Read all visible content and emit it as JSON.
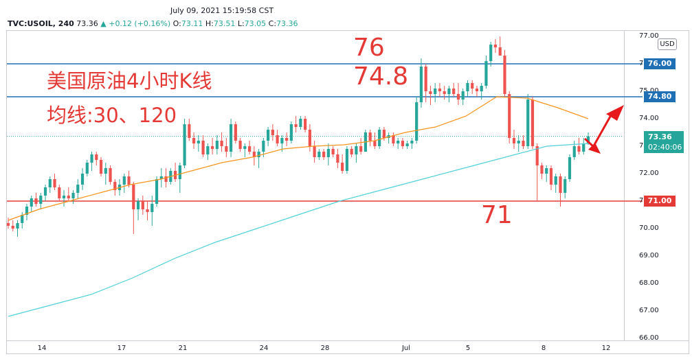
{
  "header": {
    "timestamp": "July 09, 2021 15:19:58 CST",
    "symbol": "TVC:USOIL, 240",
    "last": "73.36",
    "change": "▲ +0.12 (+0.16%)",
    "o_label": "O:",
    "o_value": "73.11",
    "h_label": "H:",
    "h_value": "73.51",
    "l_label": "L:",
    "l_value": "73.05",
    "c_label": "C:",
    "c_value": "73.36"
  },
  "annotations": {
    "title": "美国原油4小时K线",
    "ma": "均线:30、120",
    "level_76": "76",
    "level_748": "74.8",
    "level_71": "71"
  },
  "price_axis": {
    "currency_badge": "USD",
    "current_price": "73.36",
    "countdown": "02:40:06",
    "tag_76": "76.00",
    "tag_748": "74.80",
    "tag_71": "71.00"
  },
  "colors": {
    "up": "#26a69a",
    "down": "#ef5350",
    "ma30": "#f7931a",
    "ma120": "#4fd1d9",
    "blue_line": "#1f6fb5",
    "red_line": "#e53935",
    "arrow": "#e8191c"
  },
  "chart_data": {
    "type": "candlestick",
    "ylim": [
      66,
      77
    ],
    "yticks": [
      "77.00",
      "76.00",
      "75.00",
      "74.00",
      "73.00",
      "72.00",
      "71.00",
      "70.00",
      "69.00",
      "68.00",
      "67.00",
      "66.00"
    ],
    "xticks": [
      "14",
      "17",
      "21",
      "24",
      "28",
      "Jul",
      "5",
      "8",
      "12"
    ],
    "horizontal_lines": [
      {
        "value": 76.0,
        "color": "blue"
      },
      {
        "value": 74.8,
        "color": "blue"
      },
      {
        "value": 71.0,
        "color": "red"
      }
    ],
    "candles_ohlc": [
      [
        70.2,
        70.4,
        70.0,
        70.1
      ],
      [
        70.1,
        70.3,
        69.9,
        70.0
      ],
      [
        70.0,
        70.3,
        69.7,
        70.2
      ],
      [
        70.2,
        70.6,
        70.0,
        70.5
      ],
      [
        70.5,
        70.9,
        70.3,
        70.8
      ],
      [
        70.8,
        71.2,
        70.6,
        71.1
      ],
      [
        71.1,
        71.3,
        70.8,
        70.9
      ],
      [
        70.9,
        71.3,
        70.7,
        71.2
      ],
      [
        71.2,
        71.6,
        71.0,
        71.5
      ],
      [
        71.5,
        71.9,
        71.3,
        71.8
      ],
      [
        71.8,
        72.0,
        71.4,
        71.5
      ],
      [
        71.5,
        71.6,
        71.0,
        71.1
      ],
      [
        71.1,
        71.4,
        70.8,
        71.2
      ],
      [
        71.2,
        71.5,
        71.0,
        71.1
      ],
      [
        71.1,
        71.4,
        70.9,
        71.3
      ],
      [
        71.3,
        71.8,
        71.1,
        71.6
      ],
      [
        71.6,
        72.2,
        71.4,
        72.0
      ],
      [
        72.0,
        72.5,
        71.9,
        72.4
      ],
      [
        72.4,
        72.8,
        72.1,
        72.7
      ],
      [
        72.7,
        72.8,
        72.3,
        72.5
      ],
      [
        72.5,
        72.6,
        71.9,
        72.0
      ],
      [
        72.0,
        72.4,
        71.6,
        72.2
      ],
      [
        72.2,
        72.3,
        71.6,
        71.7
      ],
      [
        71.7,
        71.8,
        71.2,
        71.4
      ],
      [
        71.4,
        71.8,
        71.2,
        71.6
      ],
      [
        71.6,
        72.0,
        71.3,
        71.9
      ],
      [
        71.9,
        72.1,
        71.5,
        71.6
      ],
      [
        71.6,
        71.7,
        69.8,
        70.7
      ],
      [
        70.7,
        71.1,
        70.3,
        71.0
      ],
      [
        71.0,
        71.2,
        70.5,
        70.7
      ],
      [
        70.7,
        71.0,
        70.3,
        70.6
      ],
      [
        70.6,
        71.2,
        70.1,
        70.9
      ],
      [
        70.9,
        71.9,
        70.8,
        71.8
      ],
      [
        71.8,
        72.2,
        71.5,
        71.9
      ],
      [
        71.9,
        72.2,
        71.5,
        71.7
      ],
      [
        71.7,
        72.2,
        71.6,
        72.1
      ],
      [
        72.1,
        72.4,
        71.7,
        71.8
      ],
      [
        71.8,
        72.4,
        71.3,
        72.3
      ],
      [
        72.3,
        74.0,
        72.2,
        73.8
      ],
      [
        73.8,
        74.0,
        73.2,
        73.3
      ],
      [
        73.3,
        73.5,
        72.9,
        73.1
      ],
      [
        73.1,
        73.4,
        72.8,
        73.2
      ],
      [
        73.2,
        73.4,
        72.6,
        72.7
      ],
      [
        72.7,
        73.1,
        72.5,
        73.0
      ],
      [
        73.0,
        73.3,
        72.7,
        72.9
      ],
      [
        72.9,
        73.4,
        72.7,
        73.2
      ],
      [
        73.2,
        73.5,
        72.8,
        73.0
      ],
      [
        73.0,
        73.3,
        72.6,
        72.8
      ],
      [
        72.8,
        74.0,
        72.6,
        73.8
      ],
      [
        73.8,
        73.9,
        73.1,
        73.2
      ],
      [
        73.2,
        73.3,
        72.8,
        72.9
      ],
      [
        72.9,
        73.1,
        72.6,
        73.0
      ],
      [
        73.0,
        73.2,
        72.7,
        72.8
      ],
      [
        72.8,
        73.0,
        72.3,
        72.6
      ],
      [
        72.6,
        72.9,
        72.2,
        72.8
      ],
      [
        72.8,
        73.3,
        72.6,
        73.2
      ],
      [
        73.2,
        73.7,
        73.0,
        73.6
      ],
      [
        73.6,
        73.8,
        73.2,
        73.4
      ],
      [
        73.4,
        73.6,
        73.0,
        73.1
      ],
      [
        73.1,
        73.4,
        72.8,
        73.3
      ],
      [
        73.3,
        73.5,
        73.0,
        73.2
      ],
      [
        73.2,
        73.9,
        73.1,
        73.8
      ],
      [
        73.8,
        74.1,
        73.5,
        73.7
      ],
      [
        73.7,
        74.1,
        73.6,
        74.0
      ],
      [
        74.0,
        74.1,
        73.5,
        73.6
      ],
      [
        73.6,
        73.8,
        72.8,
        73.0
      ],
      [
        73.0,
        73.2,
        72.4,
        72.6
      ],
      [
        72.6,
        72.9,
        72.5,
        72.8
      ],
      [
        72.8,
        72.9,
        72.5,
        72.6
      ],
      [
        72.6,
        73.1,
        72.3,
        72.9
      ],
      [
        72.9,
        73.0,
        72.6,
        72.7
      ],
      [
        72.7,
        72.9,
        72.2,
        72.4
      ],
      [
        72.4,
        72.7,
        72.0,
        72.1
      ],
      [
        72.1,
        73.0,
        72.0,
        72.9
      ],
      [
        72.9,
        73.0,
        72.6,
        72.7
      ],
      [
        72.7,
        73.1,
        72.4,
        73.0
      ],
      [
        73.0,
        73.3,
        72.7,
        72.8
      ],
      [
        72.8,
        73.6,
        72.8,
        73.5
      ],
      [
        73.5,
        73.6,
        73.0,
        73.2
      ],
      [
        73.2,
        73.5,
        72.9,
        73.0
      ],
      [
        73.0,
        73.7,
        72.9,
        73.6
      ],
      [
        73.6,
        73.7,
        73.2,
        73.3
      ],
      [
        73.3,
        73.5,
        73.1,
        73.4
      ],
      [
        73.4,
        73.5,
        73.0,
        73.1
      ],
      [
        73.1,
        73.3,
        72.9,
        73.2
      ],
      [
        73.2,
        73.3,
        72.9,
        73.0
      ],
      [
        73.0,
        73.2,
        72.9,
        73.1
      ],
      [
        73.1,
        73.3,
        72.9,
        73.2
      ],
      [
        73.2,
        74.8,
        73.1,
        74.6
      ],
      [
        74.6,
        76.2,
        74.4,
        75.9
      ],
      [
        75.9,
        76.0,
        74.6,
        75.0
      ],
      [
        75.0,
        75.2,
        74.5,
        74.9
      ],
      [
        74.9,
        75.3,
        74.6,
        75.1
      ],
      [
        75.1,
        75.3,
        74.8,
        75.0
      ],
      [
        75.0,
        75.2,
        74.7,
        74.9
      ],
      [
        74.9,
        75.2,
        74.6,
        75.1
      ],
      [
        75.1,
        75.3,
        74.8,
        74.9
      ],
      [
        74.9,
        75.3,
        74.5,
        74.7
      ],
      [
        74.7,
        75.1,
        74.5,
        75.0
      ],
      [
        75.0,
        75.4,
        74.8,
        75.3
      ],
      [
        75.3,
        75.4,
        74.9,
        75.1
      ],
      [
        75.1,
        75.2,
        74.8,
        75.0
      ],
      [
        75.0,
        75.3,
        74.7,
        75.2
      ],
      [
        75.2,
        76.3,
        75.1,
        76.1
      ],
      [
        76.1,
        76.8,
        75.9,
        76.7
      ],
      [
        76.7,
        76.9,
        76.4,
        76.6
      ],
      [
        76.6,
        77.0,
        76.4,
        76.3
      ],
      [
        76.3,
        76.5,
        74.8,
        74.9
      ],
      [
        74.9,
        75.0,
        73.1,
        73.3
      ],
      [
        73.3,
        73.6,
        72.9,
        73.1
      ],
      [
        73.1,
        73.4,
        72.8,
        73.2
      ],
      [
        73.2,
        73.4,
        72.9,
        73.0
      ],
      [
        73.0,
        74.9,
        72.9,
        74.7
      ],
      [
        74.7,
        74.8,
        72.9,
        73.0
      ],
      [
        73.0,
        73.1,
        71.0,
        72.3
      ],
      [
        72.3,
        72.4,
        71.8,
        72.0
      ],
      [
        72.0,
        72.3,
        71.7,
        72.2
      ],
      [
        72.2,
        72.3,
        71.4,
        71.6
      ],
      [
        71.6,
        72.0,
        71.3,
        71.9
      ],
      [
        71.9,
        72.0,
        70.8,
        71.3
      ],
      [
        71.3,
        71.9,
        71.1,
        71.8
      ],
      [
        71.8,
        72.7,
        71.7,
        72.6
      ],
      [
        72.6,
        73.2,
        72.5,
        73.0
      ],
      [
        73.0,
        73.3,
        72.7,
        72.8
      ],
      [
        72.8,
        73.3,
        72.7,
        73.1
      ],
      [
        73.1,
        73.5,
        73.05,
        73.36
      ]
    ],
    "ma30": [
      70.3,
      70.7,
      71.0,
      71.3,
      71.6,
      71.8,
      72.1,
      72.4,
      72.6,
      72.9,
      73.0,
      73.05,
      73.2,
      73.5,
      73.7,
      74.1,
      74.8,
      74.75,
      74.4,
      74.0
    ],
    "ma120": [
      66.8,
      67.2,
      67.6,
      68.2,
      68.9,
      69.5,
      70.0,
      70.5,
      71.0,
      71.4,
      71.8,
      72.2,
      72.6,
      73.0,
      73.1
    ]
  }
}
